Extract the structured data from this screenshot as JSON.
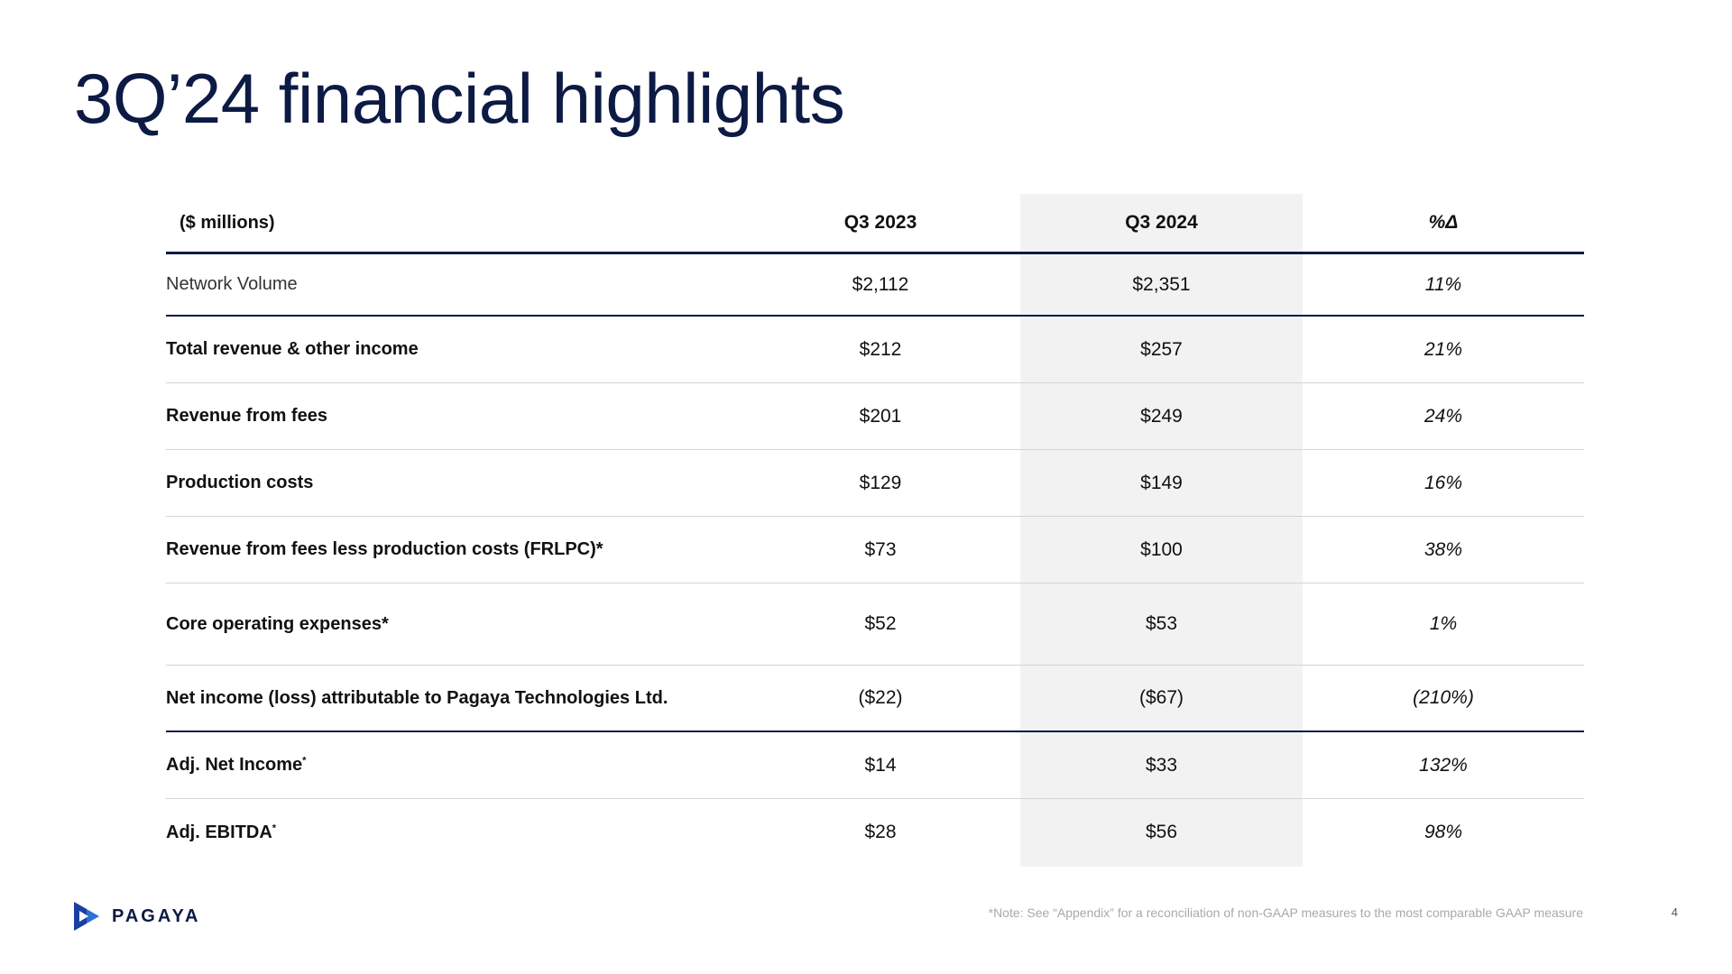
{
  "slide": {
    "title": "3Q’24 financial highlights",
    "footnote": "*Note: See “Appendix” for a reconciliation of non-GAAP measures to the most comparable GAAP measure",
    "page_number": "4",
    "logo_text": "PAGAYA",
    "logo_icon": "pagaya-logo-icon",
    "colors": {
      "title": "#0c1a44",
      "highlight_column": "#f2f2f2",
      "rule": "#0c1a44"
    }
  },
  "table": {
    "headers": {
      "label": "($ millions)",
      "q3_2023": "Q3 2023",
      "q3_2024": "Q3 2024",
      "pct": "%Δ"
    },
    "rows": [
      {
        "label": "Network Volume",
        "q3_2023": "$2,112",
        "q3_2024": "$2,351",
        "pct": "11%"
      },
      {
        "label": "Total revenue & other income",
        "q3_2023": "$212",
        "q3_2024": "$257",
        "pct": "21%"
      },
      {
        "label": "Revenue from fees",
        "q3_2023": "$201",
        "q3_2024": "$249",
        "pct": "24%"
      },
      {
        "label": "Production costs",
        "q3_2023": "$129",
        "q3_2024": "$149",
        "pct": "16%"
      },
      {
        "label": "Revenue from fees less production costs (FRLPC)*",
        "q3_2023": "$73",
        "q3_2024": "$100",
        "pct": "38%"
      },
      {
        "label": "Core operating expenses*",
        "q3_2023": "$52",
        "q3_2024": "$53",
        "pct": "1%"
      },
      {
        "label": "Net income (loss) attributable to Pagaya Technologies Ltd.",
        "q3_2023": "($22)",
        "q3_2024": "($67)",
        "pct": "(210%)"
      },
      {
        "label": "Adj. Net Income",
        "label_sup": "*",
        "q3_2023": "$14",
        "q3_2024": "$33",
        "pct": "132%"
      },
      {
        "label": "Adj. EBITDA",
        "label_sup": "*",
        "q3_2023": "$28",
        "q3_2024": "$56",
        "pct": "98%"
      }
    ]
  }
}
